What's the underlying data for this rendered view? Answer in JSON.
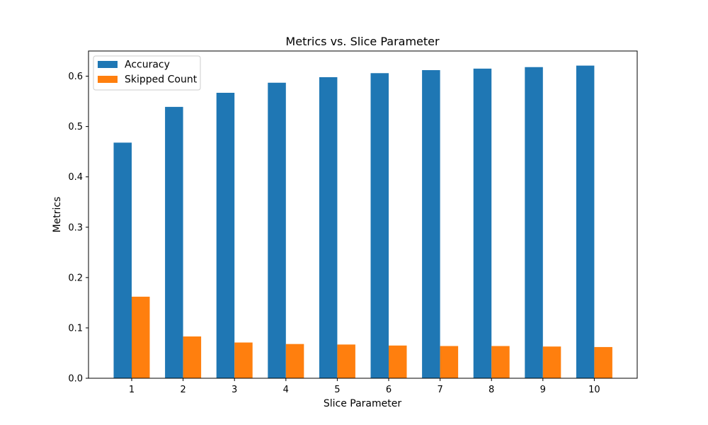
{
  "chart_data": {
    "type": "bar",
    "title": "Metrics vs. Slice Parameter",
    "xlabel": "Slice Parameter",
    "ylabel": "Metrics",
    "categories": [
      "1",
      "2",
      "3",
      "4",
      "5",
      "6",
      "7",
      "8",
      "9",
      "10"
    ],
    "series": [
      {
        "name": "Accuracy",
        "color": "#1f77b4",
        "values": [
          0.468,
          0.539,
          0.567,
          0.587,
          0.598,
          0.606,
          0.612,
          0.615,
          0.618,
          0.621
        ]
      },
      {
        "name": "Skipped Count",
        "color": "#ff7f0e",
        "values": [
          0.162,
          0.083,
          0.071,
          0.068,
          0.067,
          0.065,
          0.064,
          0.064,
          0.063,
          0.062
        ]
      }
    ],
    "ylim": [
      0,
      0.65
    ],
    "yticks": [
      "0.0",
      "0.1",
      "0.2",
      "0.3",
      "0.4",
      "0.5",
      "0.6"
    ],
    "grid": false,
    "legend_position": "top-left"
  }
}
